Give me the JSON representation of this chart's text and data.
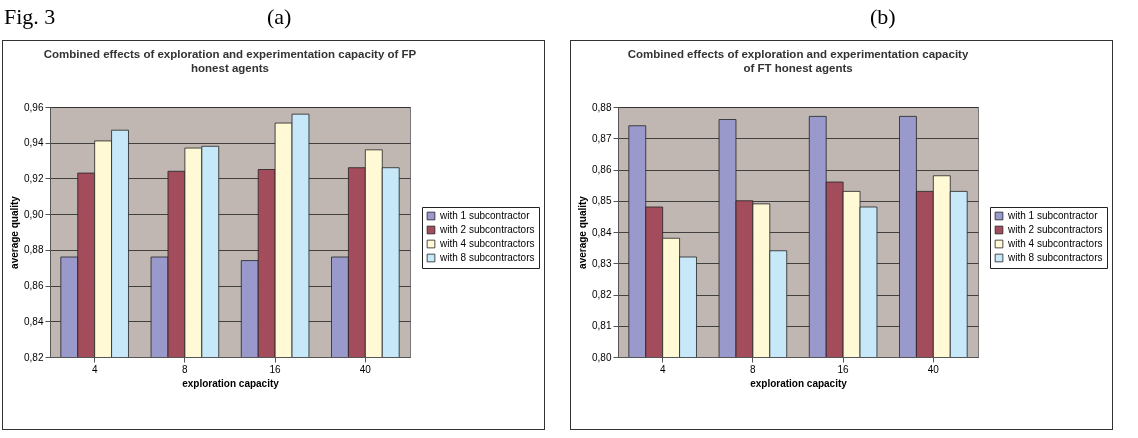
{
  "chart_data": [
    {
      "type": "bar",
      "title": "Combined effects of exploration and experimentation capacity  of FP\nhonest agents",
      "xlabel": "exploration capacity",
      "ylabel": "average quality",
      "categories": [
        "4",
        "8",
        "16",
        "40"
      ],
      "series": [
        {
          "name": "with 1 subcontractor",
          "color": "#9999cc",
          "values": [
            0.876,
            0.876,
            0.874,
            0.876
          ]
        },
        {
          "name": "with 2 subcontractors",
          "color": "#a34d5c",
          "values": [
            0.923,
            0.924,
            0.925,
            0.926
          ]
        },
        {
          "name": "with 4 subcontractors",
          "color": "#fffad5",
          "values": [
            0.941,
            0.937,
            0.951,
            0.936
          ]
        },
        {
          "name": "with 8 subcontractors",
          "color": "#c6e8f8",
          "values": [
            0.947,
            0.938,
            0.956,
            0.926
          ]
        }
      ],
      "ylim": [
        0.82,
        0.96
      ],
      "yticks": [
        {
          "value": 0.82,
          "label": "0,82"
        },
        {
          "value": 0.84,
          "label": "0,84"
        },
        {
          "value": 0.86,
          "label": "0,86"
        },
        {
          "value": 0.88,
          "label": "0,88"
        },
        {
          "value": 0.9,
          "label": "0,90"
        },
        {
          "value": 0.92,
          "label": "0,92"
        },
        {
          "value": 0.94,
          "label": "0,94"
        },
        {
          "value": 0.96,
          "label": "0,96"
        }
      ],
      "grid": "y",
      "legend": "right",
      "annotations": [
        "Fig. 3",
        "(a)"
      ]
    },
    {
      "type": "bar",
      "title": "Combined effects of exploration and experimentation capacity\nof FT honest agents",
      "xlabel": "exploration capacity",
      "ylabel": "average quality",
      "categories": [
        "4",
        "8",
        "16",
        "40"
      ],
      "series": [
        {
          "name": "with 1 subcontractor",
          "color": "#9999cc",
          "values": [
            0.874,
            0.876,
            0.877,
            0.877
          ]
        },
        {
          "name": "with 2 subcontractors",
          "color": "#a34d5c",
          "values": [
            0.848,
            0.85,
            0.856,
            0.853
          ]
        },
        {
          "name": "with 4 subcontractors",
          "color": "#fffad5",
          "values": [
            0.838,
            0.849,
            0.853,
            0.858
          ]
        },
        {
          "name": "with 8 subcontractors",
          "color": "#c6e8f8",
          "values": [
            0.832,
            0.834,
            0.848,
            0.853
          ]
        }
      ],
      "ylim": [
        0.8,
        0.88
      ],
      "yticks": [
        {
          "value": 0.8,
          "label": "0,80"
        },
        {
          "value": 0.81,
          "label": "0,81"
        },
        {
          "value": 0.82,
          "label": "0,82"
        },
        {
          "value": 0.83,
          "label": "0,83"
        },
        {
          "value": 0.84,
          "label": "0,84"
        },
        {
          "value": 0.85,
          "label": "0,85"
        },
        {
          "value": 0.86,
          "label": "0,86"
        },
        {
          "value": 0.87,
          "label": "0,87"
        },
        {
          "value": 0.88,
          "label": "0,88"
        }
      ],
      "grid": "y",
      "legend": "right",
      "annotations": [
        "(b)"
      ]
    }
  ]
}
